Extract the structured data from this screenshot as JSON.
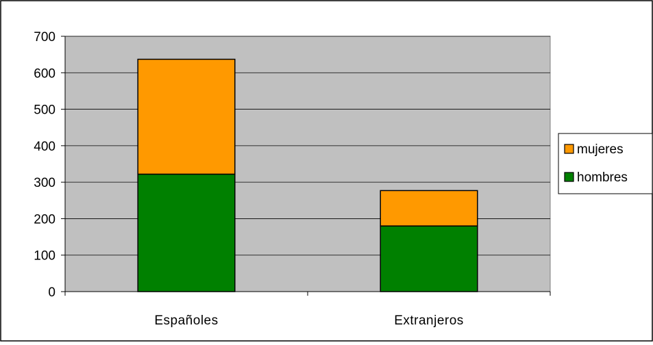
{
  "chart_data": {
    "type": "bar",
    "stacked": true,
    "categories": [
      "Españoles",
      "Extranjeros"
    ],
    "series": [
      {
        "name": "hombres",
        "values": [
          322,
          180
        ],
        "color": "#008000"
      },
      {
        "name": "mujeres",
        "values": [
          315,
          97
        ],
        "color": "#ff9900"
      }
    ],
    "ylim": [
      0,
      700
    ],
    "yticks": [
      0,
      100,
      200,
      300,
      400,
      500,
      600,
      700
    ],
    "grid": true,
    "plot_background": "#c0c0c0",
    "legend_position": "right",
    "legend_order": [
      "mujeres",
      "hombres"
    ],
    "title": "",
    "xlabel": "",
    "ylabel": ""
  }
}
